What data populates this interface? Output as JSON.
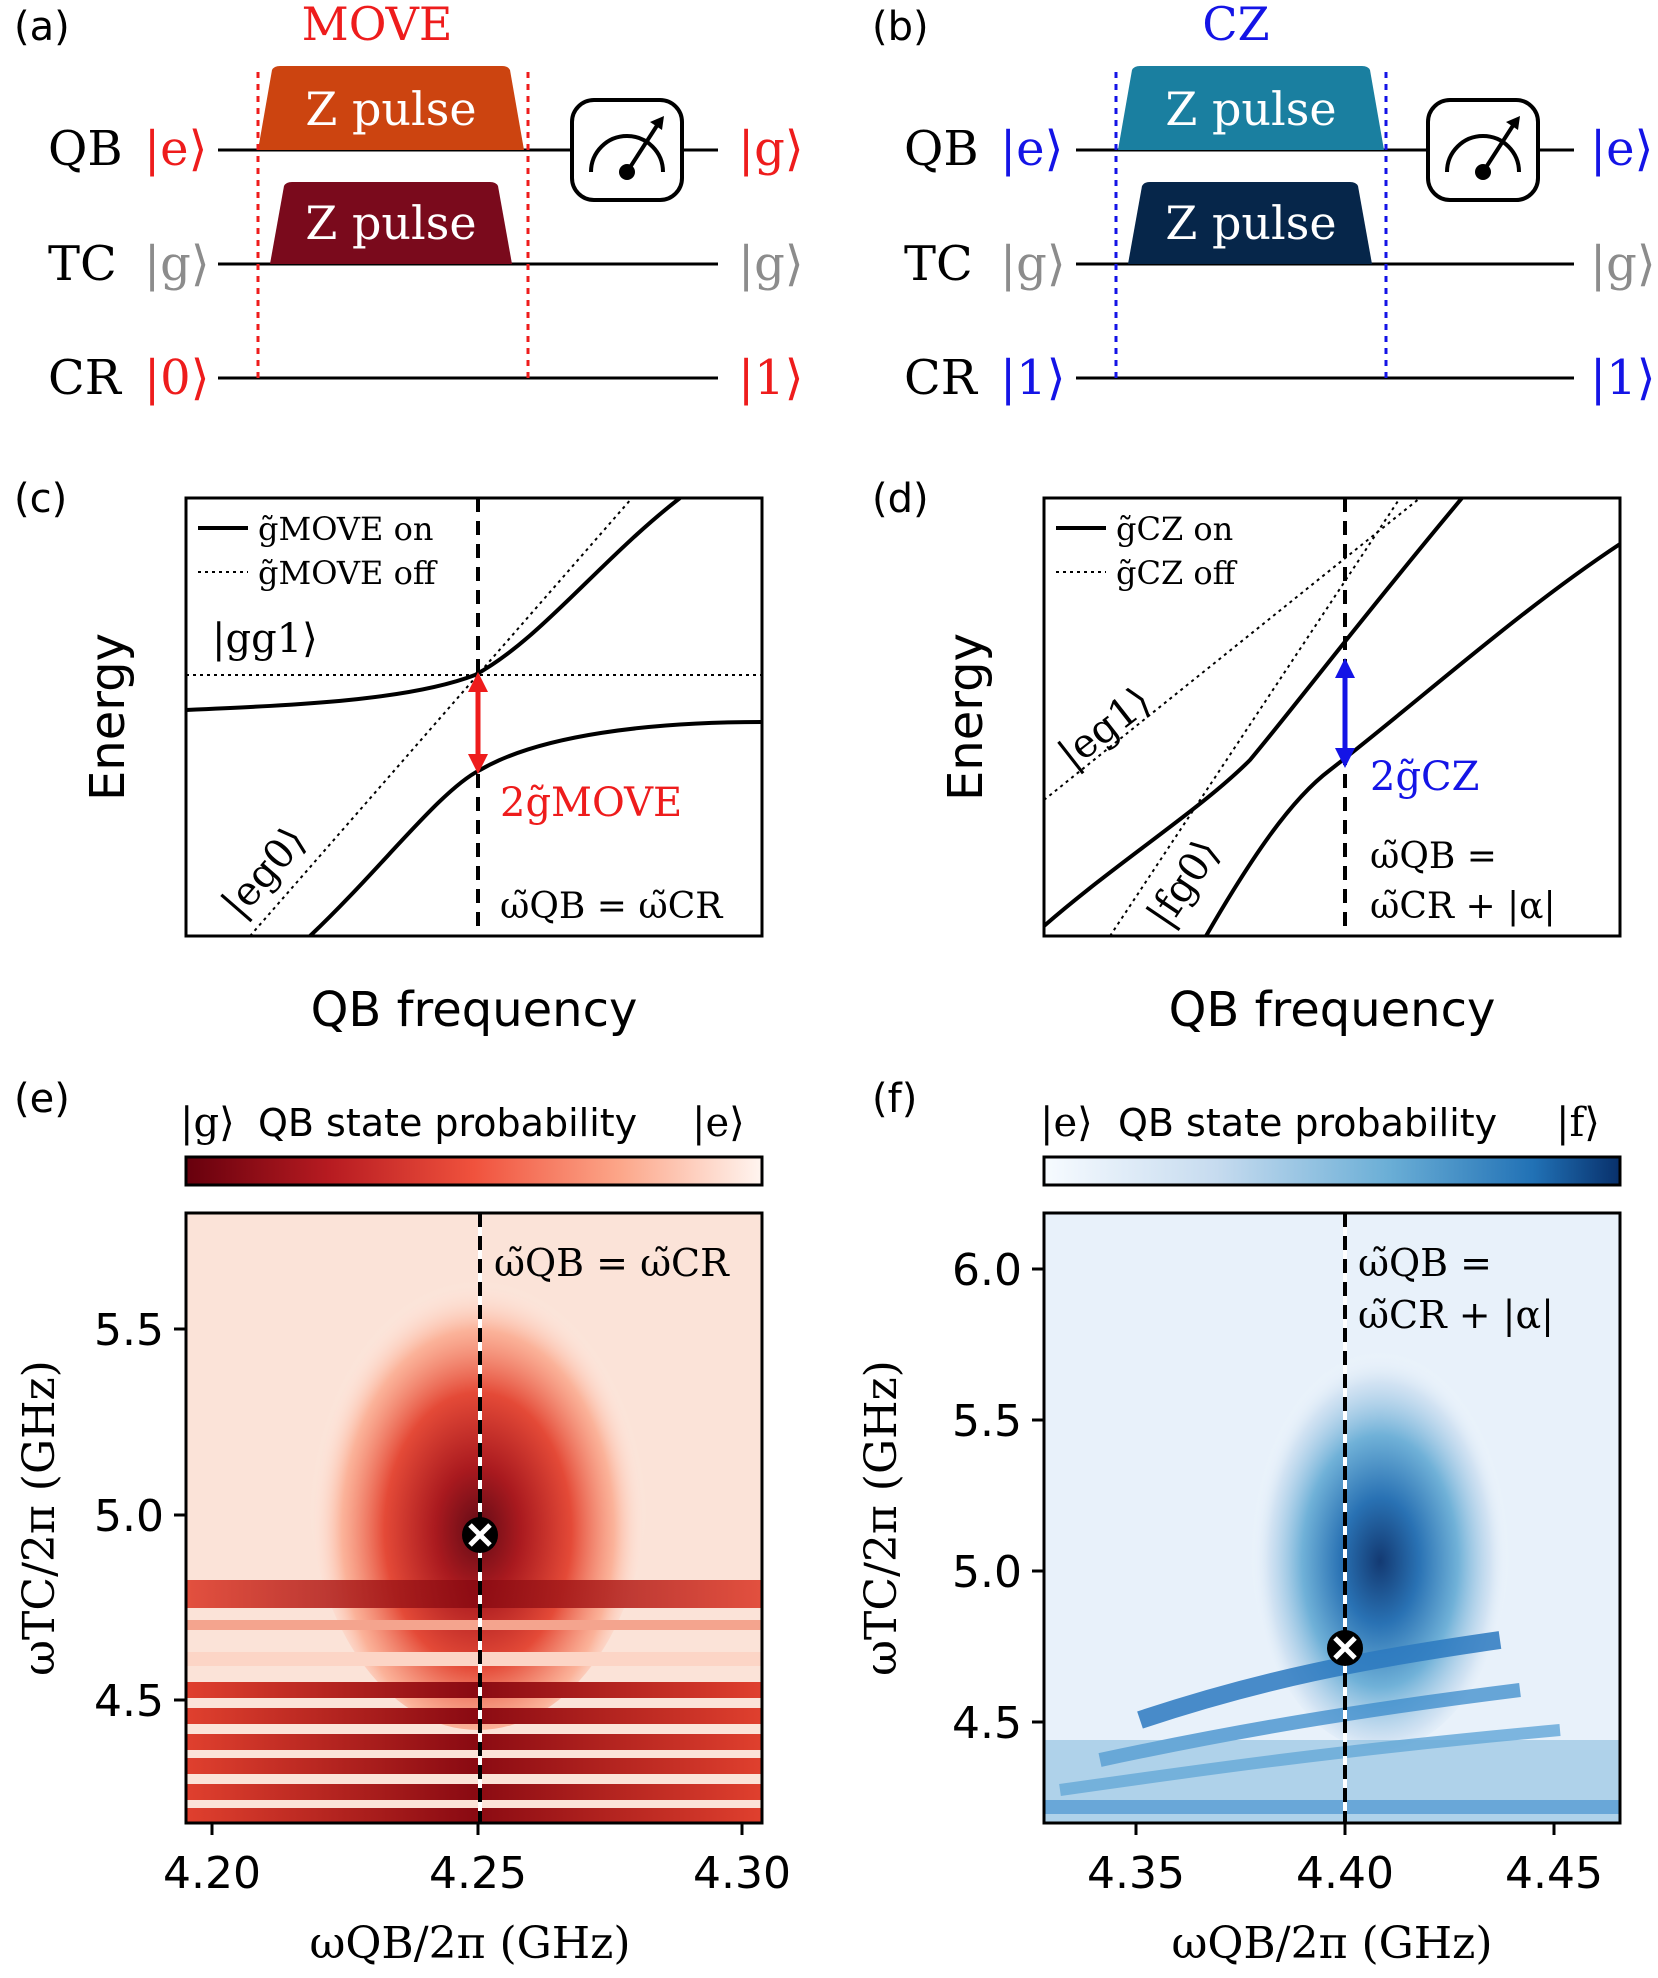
{
  "panels": {
    "a": {
      "letter": "(a)",
      "title": "MOVE",
      "qb_pulse": "Z pulse",
      "tc_pulse": "Z pulse",
      "rows": [
        {
          "label": "QB",
          "in": "|e⟩",
          "out": "|g⟩"
        },
        {
          "label": "TC",
          "in": "|g⟩",
          "out": "|g⟩"
        },
        {
          "label": "CR",
          "in": "|0⟩",
          "out": "|1⟩"
        }
      ]
    },
    "b": {
      "letter": "(b)",
      "title": "CZ",
      "qb_pulse": "Z pulse",
      "tc_pulse": "Z pulse",
      "rows": [
        {
          "label": "QB",
          "in": "|e⟩",
          "out": "|e⟩"
        },
        {
          "label": "TC",
          "in": "|g⟩",
          "out": "|g⟩"
        },
        {
          "label": "CR",
          "in": "|1⟩",
          "out": "|1⟩"
        }
      ]
    },
    "c": {
      "letter": "(c)",
      "legend_on": "g̃MOVE on",
      "legend_off": "g̃MOVE off",
      "state_top": "|gg1⟩",
      "state_bottom": "|eg0⟩",
      "gap_label": "2g̃MOVE",
      "condition": "ω̃QB = ω̃CR",
      "ylabel": "Energy",
      "xlabel": "QB frequency"
    },
    "d": {
      "letter": "(d)",
      "legend_on": "g̃CZ on",
      "legend_off": "g̃CZ off",
      "state_top": "|eg1⟩",
      "state_bottom": "|fg0⟩",
      "gap_label": "2g̃CZ",
      "condition_line1": "ω̃QB =",
      "condition_line2": "ω̃CR + |α|",
      "ylabel": "Energy",
      "xlabel": "QB frequency"
    },
    "e": {
      "letter": "(e)",
      "colorbar_left": "|g⟩",
      "colorbar_title": "QB state probability",
      "colorbar_right": "|e⟩",
      "condition": "ω̃QB = ω̃CR",
      "ylabel": "ωTC/2π (GHz)",
      "xlabel": "ωQB/2π (GHz)",
      "xticks": [
        "4.20",
        "4.25",
        "4.30"
      ],
      "yticks": [
        "4.5",
        "5.0",
        "5.5"
      ],
      "marker_x": 4.252,
      "marker_y": 4.94
    },
    "f": {
      "letter": "(f)",
      "colorbar_left": "|e⟩",
      "colorbar_title": "QB state probability",
      "colorbar_right": "|f⟩",
      "condition_line1": "ω̃QB =",
      "condition_line2": "ω̃CR + |α|",
      "ylabel": "ωTC/2π (GHz)",
      "xlabel": "ωQB/2π (GHz)",
      "xticks": [
        "4.35",
        "4.40",
        "4.45"
      ],
      "yticks": [
        "4.5",
        "5.0",
        "5.5",
        "6.0"
      ],
      "marker_x": 4.403,
      "marker_y": 4.73
    }
  },
  "chart_data": [
    {
      "type": "heatmap",
      "panel": "e",
      "xlabel": "ωQB/2π (GHz)",
      "ylabel": "ωTC/2π (GHz)",
      "xlim": [
        4.195,
        4.307
      ],
      "ylim": [
        4.17,
        5.82
      ],
      "xticks": [
        4.2,
        4.25,
        4.3
      ],
      "yticks": [
        4.5,
        5.0,
        5.5
      ],
      "colorbar": "|g⟩ QB state probability |e⟩",
      "colormap": "Reds (dark = |g⟩)",
      "max_transfer_point": [
        4.252,
        4.94
      ],
      "resonance_line_x": 4.252
    },
    {
      "type": "heatmap",
      "panel": "f",
      "xlabel": "ωQB/2π (GHz)",
      "ylabel": "ωTC/2π (GHz)",
      "xlim": [
        4.332,
        4.468
      ],
      "ylim": [
        4.15,
        6.17
      ],
      "xticks": [
        4.35,
        4.4,
        4.45
      ],
      "yticks": [
        4.5,
        5.0,
        5.5,
        6.0
      ],
      "colorbar": "|e⟩ QB state probability |f⟩",
      "colormap": "Blues (dark = |f⟩)",
      "max_transfer_point": [
        4.403,
        4.73
      ],
      "resonance_line_x": 4.403
    }
  ],
  "colors": {
    "move_red": "#ee1c1c",
    "cz_blue": "#1414e6",
    "gray": "#8c8c8c",
    "qb_pulse_a": "#cc4410",
    "tc_pulse_a": "#7a0a1c",
    "qb_pulse_b": "#1a7fa0",
    "tc_pulse_b": "#06264a"
  }
}
